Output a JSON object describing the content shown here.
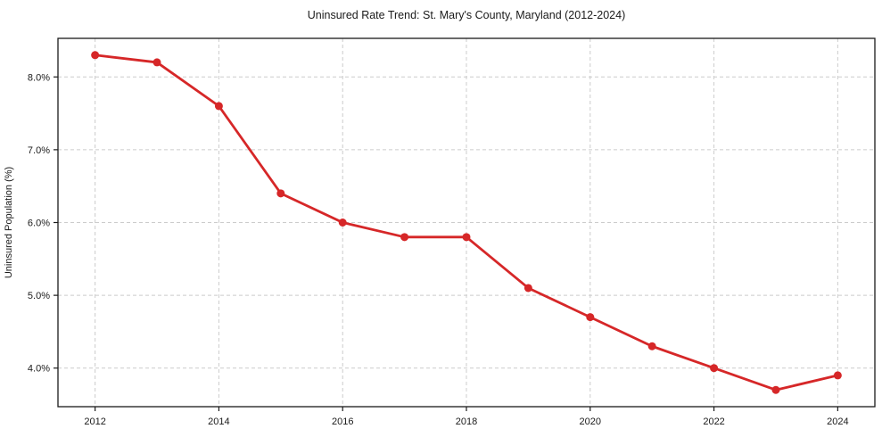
{
  "chart_data": {
    "type": "line",
    "title": "Uninsured Rate Trend: St. Mary's County, Maryland (2012-2024)",
    "xlabel": "",
    "ylabel": "Uninsured Population (%)",
    "x": [
      2012,
      2013,
      2014,
      2015,
      2016,
      2017,
      2018,
      2019,
      2020,
      2021,
      2022,
      2023,
      2024
    ],
    "values": [
      8.3,
      8.2,
      7.6,
      6.4,
      6.0,
      5.8,
      5.8,
      5.1,
      4.7,
      4.3,
      4.0,
      3.7,
      3.9
    ],
    "xticks": {
      "values": [
        2012,
        2014,
        2016,
        2018,
        2020,
        2022,
        2024
      ],
      "labels": [
        "2012",
        "2014",
        "2016",
        "2018",
        "2020",
        "2022",
        "2024"
      ]
    },
    "yticks": {
      "values": [
        4.0,
        5.0,
        6.0,
        7.0,
        8.0
      ],
      "labels": [
        "4.0%",
        "5.0%",
        "6.0%",
        "7.0%",
        "8.0%"
      ]
    },
    "xlim": [
      2011.4,
      2024.6
    ],
    "ylim": [
      3.47,
      8.53
    ],
    "grid": true,
    "grid_style": "dashed",
    "legend": false,
    "line_color": "#d62728",
    "marker": "circle",
    "grid_color": "#cccccc",
    "spine_color": "#1a1a1a",
    "text_color": "#1a1a1a",
    "background": "#ffffff"
  }
}
